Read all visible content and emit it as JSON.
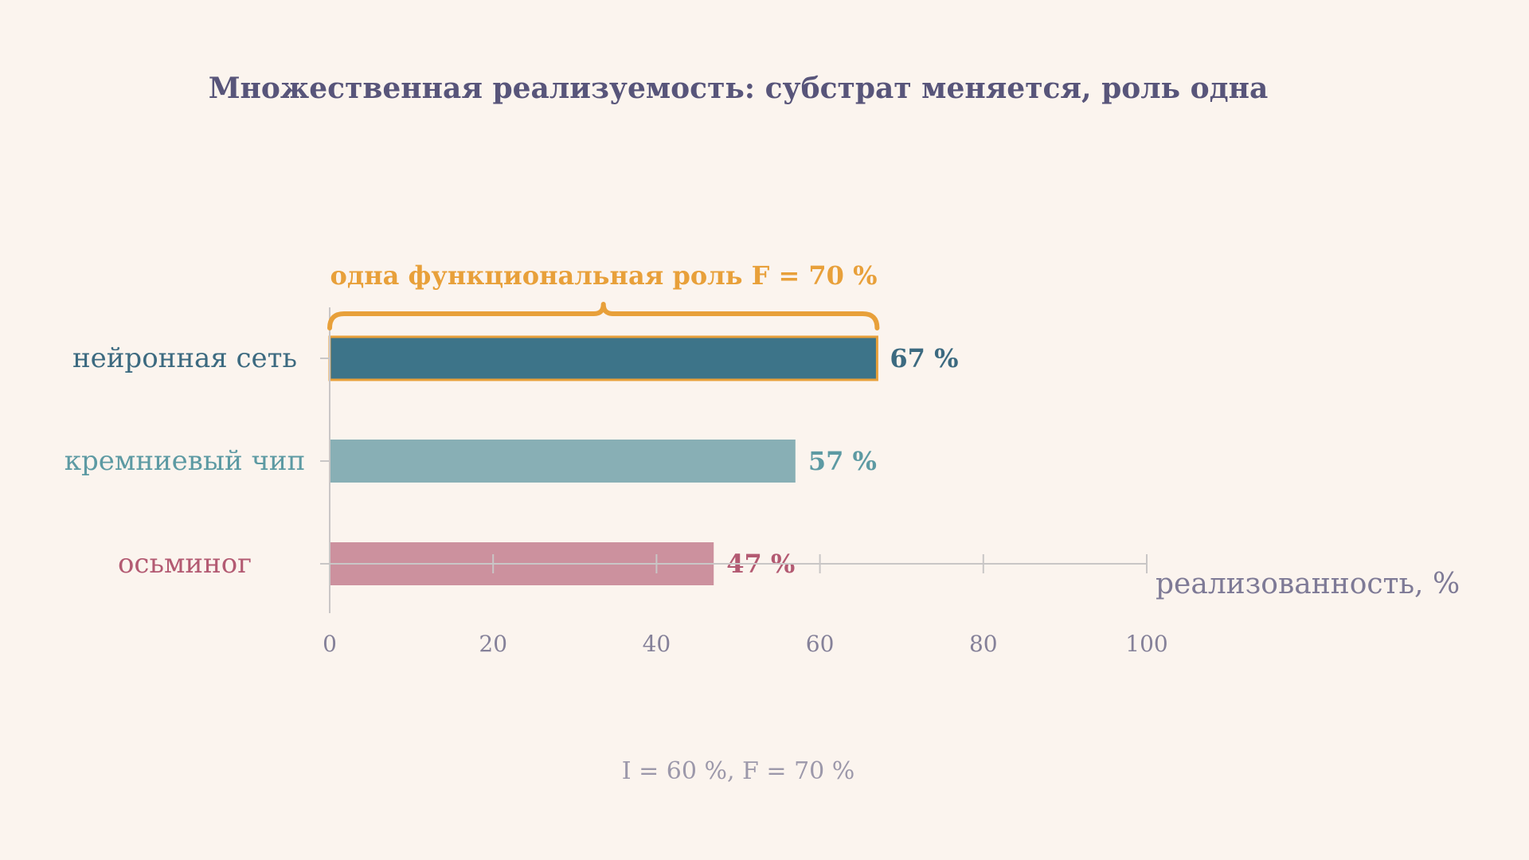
{
  "chart_data": {
    "type": "bar",
    "orientation": "horizontal",
    "title": "Множественная реализуемость: субстрат меняется, роль одна",
    "categories": [
      "нейронная сеть",
      "кремниевый чип",
      "осьминог"
    ],
    "values": [
      67,
      57,
      47
    ],
    "value_labels": [
      "67 %",
      "57 %",
      "47 %"
    ],
    "colors": [
      "#3d7489",
      "#88afb5",
      "#c98b99"
    ],
    "label_colors": [
      "#3c6a80",
      "#5d9aa3",
      "#b35a72"
    ],
    "highlight_index": 0,
    "highlight_color": "#e8a03a",
    "xlim": [
      0,
      100
    ],
    "xticks": [
      0,
      20,
      40,
      60,
      80,
      100
    ],
    "xlabel": "реализованность, %",
    "ylabel": "",
    "grid": false,
    "annotation": {
      "text": "одна функциональная роль F = 70 %",
      "color": "#e8a03a"
    },
    "footnote": "I = 60 %, F = 70 %"
  },
  "colors": {
    "background": "#fbf4ee",
    "title": "#58557a",
    "axis": "#c9c6c6",
    "tick_label": "#858199"
  }
}
